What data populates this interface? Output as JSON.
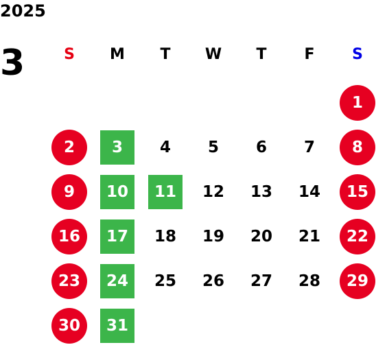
{
  "calendar": {
    "year": "2025",
    "month": "3",
    "colors": {
      "sunday_label": "#e60012",
      "saturday_label": "#0000e6",
      "holiday_circle": "#e60021",
      "closed_square": "#3cb54a",
      "normal_text": "#000000"
    },
    "weekdays": [
      {
        "label": "S",
        "kind": "sunday"
      },
      {
        "label": "M",
        "kind": "weekday"
      },
      {
        "label": "T",
        "kind": "weekday"
      },
      {
        "label": "W",
        "kind": "weekday"
      },
      {
        "label": "T",
        "kind": "weekday"
      },
      {
        "label": "F",
        "kind": "weekday"
      },
      {
        "label": "S",
        "kind": "saturday"
      }
    ],
    "weeks": [
      [
        null,
        null,
        null,
        null,
        null,
        null,
        {
          "day": "1",
          "mark": "holiday"
        }
      ],
      [
        {
          "day": "2",
          "mark": "holiday"
        },
        {
          "day": "3",
          "mark": "closed"
        },
        {
          "day": "4",
          "mark": "none"
        },
        {
          "day": "5",
          "mark": "none"
        },
        {
          "day": "6",
          "mark": "none"
        },
        {
          "day": "7",
          "mark": "none"
        },
        {
          "day": "8",
          "mark": "holiday"
        }
      ],
      [
        {
          "day": "9",
          "mark": "holiday"
        },
        {
          "day": "10",
          "mark": "closed"
        },
        {
          "day": "11",
          "mark": "closed"
        },
        {
          "day": "12",
          "mark": "none"
        },
        {
          "day": "13",
          "mark": "none"
        },
        {
          "day": "14",
          "mark": "none"
        },
        {
          "day": "15",
          "mark": "holiday"
        }
      ],
      [
        {
          "day": "16",
          "mark": "holiday"
        },
        {
          "day": "17",
          "mark": "closed"
        },
        {
          "day": "18",
          "mark": "none"
        },
        {
          "day": "19",
          "mark": "none"
        },
        {
          "day": "20",
          "mark": "none"
        },
        {
          "day": "21",
          "mark": "none"
        },
        {
          "day": "22",
          "mark": "holiday"
        }
      ],
      [
        {
          "day": "23",
          "mark": "holiday"
        },
        {
          "day": "24",
          "mark": "closed"
        },
        {
          "day": "25",
          "mark": "none"
        },
        {
          "day": "26",
          "mark": "none"
        },
        {
          "day": "27",
          "mark": "none"
        },
        {
          "day": "28",
          "mark": "none"
        },
        {
          "day": "29",
          "mark": "holiday"
        }
      ],
      [
        {
          "day": "30",
          "mark": "holiday"
        },
        {
          "day": "31",
          "mark": "closed"
        },
        null,
        null,
        null,
        null,
        null
      ]
    ]
  }
}
